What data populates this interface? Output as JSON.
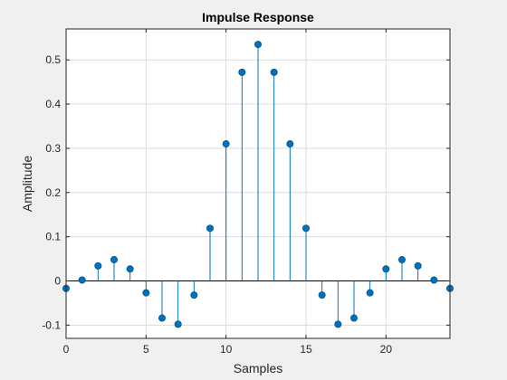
{
  "chart_data": {
    "type": "stem",
    "title": "Impulse Response",
    "xlabel": "Samples",
    "ylabel": "Amplitude",
    "xlim": [
      0,
      24
    ],
    "ylim": [
      -0.13,
      0.57
    ],
    "xticks": [
      "0",
      "5",
      "10",
      "15",
      "20"
    ],
    "yticks": [
      "-0.1",
      "0",
      "0.1",
      "0.2",
      "0.3",
      "0.4",
      "0.5"
    ],
    "grid": true,
    "stem_color": "#0072bd",
    "x": [
      0,
      1,
      2,
      3,
      4,
      5,
      6,
      7,
      8,
      9,
      10,
      11,
      12,
      13,
      14,
      15,
      16,
      17,
      18,
      19,
      20,
      21,
      22,
      23,
      24
    ],
    "y": [
      -0.017,
      0.002,
      0.034,
      0.048,
      0.027,
      -0.027,
      -0.084,
      -0.098,
      -0.032,
      0.119,
      0.31,
      0.472,
      0.535,
      0.472,
      0.31,
      0.119,
      -0.032,
      -0.098,
      -0.084,
      -0.027,
      0.027,
      0.048,
      0.034,
      0.002,
      -0.017
    ]
  }
}
